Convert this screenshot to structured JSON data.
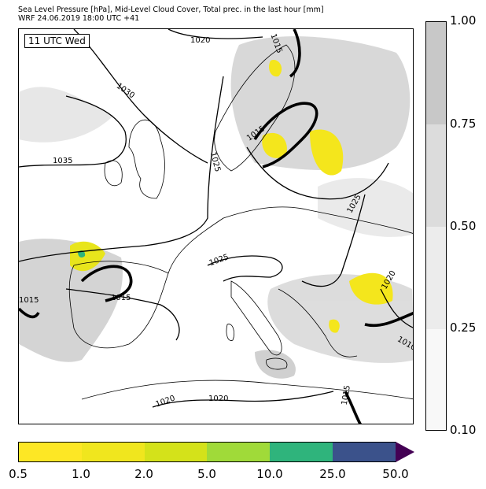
{
  "header": {
    "title_line1": "Sea Level Pressure [hPa], Mid-Level Cloud Cover, Total prec. in the last hour [mm]",
    "title_line2": "WRF 24.06.2019 18:00 UTC +41"
  },
  "map": {
    "time_label": "11 UTC Wed",
    "isobar_labels": [
      "1020",
      "1015",
      "1030",
      "1035",
      "1025",
      "1015",
      "1025",
      "1025",
      "1020",
      "1015",
      "1015",
      "1010",
      "1020",
      "1020",
      "1015"
    ]
  },
  "cloud_colorbar": {
    "labels": [
      "1.00",
      "0.75",
      "0.50",
      "0.25",
      "0.10"
    ],
    "colors": [
      "#c8c8c8",
      "#dcdcdc",
      "#ececec",
      "#f8f8f8"
    ]
  },
  "precip_colorbar": {
    "labels": [
      "0.5",
      "1.0",
      "2.0",
      "5.0",
      "10.0",
      "25.0",
      "50.0"
    ],
    "colors": [
      "#fde725",
      "#f0e61e",
      "#d4e21a",
      "#a0da39",
      "#2fb47c",
      "#3b528b"
    ],
    "extend_color": "#440154"
  }
}
